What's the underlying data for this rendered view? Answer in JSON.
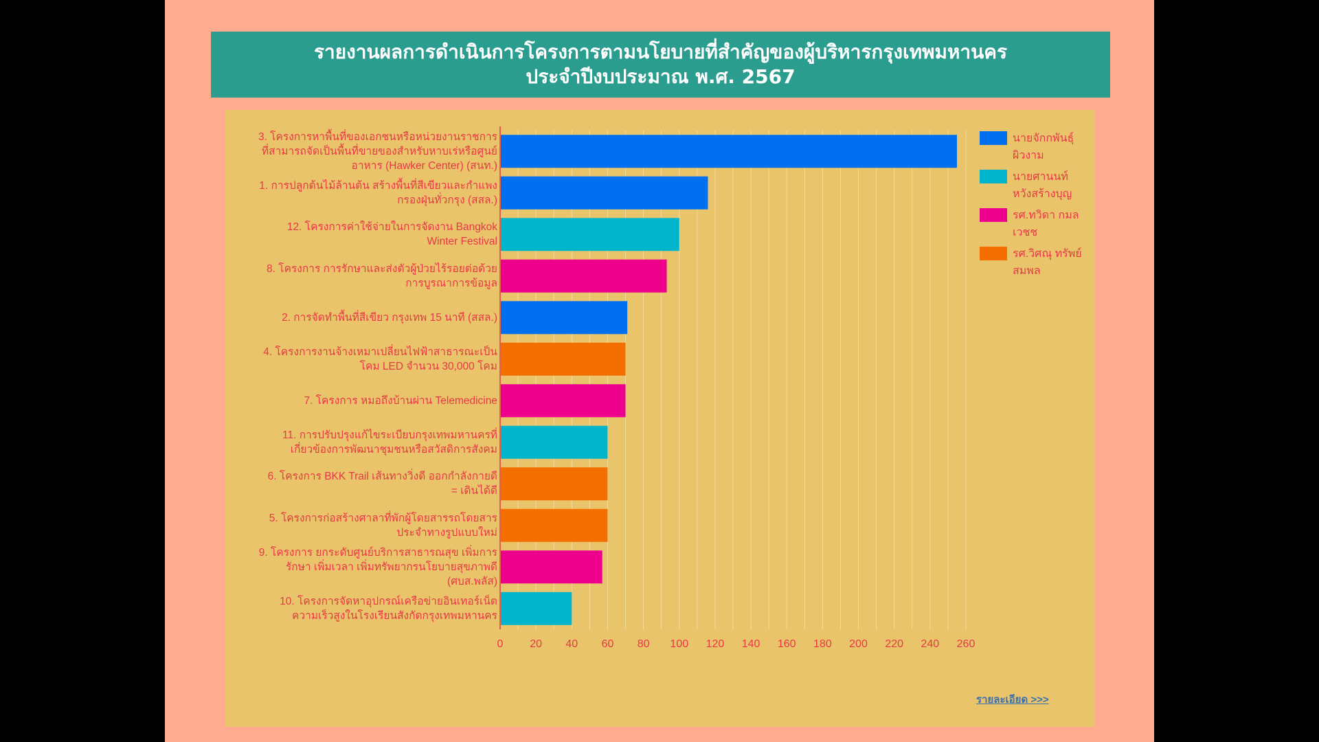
{
  "title": {
    "line1": "รายงานผลการดำเนินการโครงการตามนโยบายที่สำคัญของผู้บริหารกรุงเทพมหานคร",
    "line2": "ประจำปีงบประมาณ พ.ศ. 2567"
  },
  "detail_link": "รายละเอียด >>>",
  "colors": {
    "background": "#ffab8f",
    "title_bg": "#2a9d8f",
    "chart_bg": "#e9c46a",
    "text": "#e63946"
  },
  "legend": [
    {
      "label": "นายจักกพันธุ์ ผิวงาม",
      "color": "#0070f0"
    },
    {
      "label": "นายศานนท์ หวังสร้างบุญ",
      "color": "#00b4cc"
    },
    {
      "label": "รศ.ทวิดา กมลเวชช",
      "color": "#ec008c"
    },
    {
      "label": "รศ.วิศณุ ทรัพย์สมพล",
      "color": "#f46f00"
    }
  ],
  "chart_data": {
    "type": "bar",
    "orientation": "horizontal",
    "categories": [
      "3. โครงการหาพื้นที่ของเอกชนหรือหน่วยงานราชการที่สามารถจัดเป็นพื้นที่ขายของสำหรับหาบเร่หรือศูนย์อาหาร (Hawker Center) (สนท.)",
      "1. การปลูกต้นไม้ล้านต้น สร้างพื้นที่สีเขียวและกำแพงกรองฝุ่นทั่วกรุง (สสล.)",
      "12. โครงการค่าใช้จ่ายในการจัดงาน Bangkok Winter Festival",
      "8. โครงการ การรักษาและส่งตัวผู้ป่วยไร้รอยต่อด้วยการบูรณาการข้อมูล",
      "2. การจัดทำพื้นที่สีเขียว กรุงเทพ 15 นาที (สสล.)",
      "4. โครงการงานจ้างเหมาเปลี่ยนไฟฟ้าสาธารณะเป็นโคม LED จำนวน 30,000 โคม",
      "7. โครงการ หมอถึงบ้านผ่าน Telemedicine",
      "11. การปรับปรุงแก้ไขระเบียบกรุงเทพมหานครที่เกี่ยวข้องการพัฒนาชุมชนหรือสวัสดิการสังคม",
      "6. โครงการ BKK Trail เส้นทางวิ่งดี ออกกำลังกายดี = เดินได้ดี",
      "5. โครงการก่อสร้างศาลาที่พักผู้โดยสารรถโดยสารประจำทางรูปแบบใหม่",
      "9. โครงการ ยกระดับศูนย์บริการสาธารณสุข เพิ่มการรักษา เพิ่มเวลา เพิ่มทรัพยากรนโยบายสุขภาพดี (ศบส.พลัส)",
      "10. โครงการจัดหาอุปกรณ์เครือข่ายอินเทอร์เน็ตความเร็วสูงในโรงเรียนสังกัดกรุงเทพมหานคร"
    ],
    "category_lines": [
      [
        "3. โครงการหาพื้นที่ของเอกชนหรือหน่วยงานราชการ",
        "ที่สามารถจัดเป็นพื้นที่ขายของสำหรับหาบเร่หรือศูนย์",
        "อาหาร (Hawker Center) (สนท.)"
      ],
      [
        "1. การปลูกต้นไม้ล้านต้น สร้างพื้นที่สีเขียวและกำแพง",
        "กรองฝุ่นทั่วกรุง (สสล.)"
      ],
      [
        "12. โครงการค่าใช้จ่ายในการจัดงาน Bangkok",
        "Winter Festival"
      ],
      [
        "8. โครงการ การรักษาและส่งตัวผู้ป่วยไร้รอยต่อด้วย",
        "การบูรณาการข้อมูล"
      ],
      [
        "2. การจัดทำพื้นที่สีเขียว กรุงเทพ 15 นาที (สสล.)"
      ],
      [
        "4. โครงการงานจ้างเหมาเปลี่ยนไฟฟ้าสาธารณะเป็น",
        "โคม LED จำนวน 30,000 โคม"
      ],
      [
        "7. โครงการ หมอถึงบ้านผ่าน Telemedicine"
      ],
      [
        "11. การปรับปรุงแก้ไขระเบียบกรุงเทพมหานครที่",
        "เกี่ยวข้องการพัฒนาชุมชนหรือสวัสดิการสังคม"
      ],
      [
        "6. โครงการ BKK Trail เส้นทางวิ่งดี ออกกำลังกายดี",
        "= เดินได้ดี"
      ],
      [
        "5. โครงการก่อสร้างศาลาที่พักผู้โดยสารรถโดยสาร",
        "ประจำทางรูปแบบใหม่"
      ],
      [
        "9. โครงการ ยกระดับศูนย์บริการสาธารณสุข เพิ่มการ",
        "รักษา เพิ่มเวลา เพิ่มทรัพยากรนโยบายสุขภาพดี",
        "(ศบส.พลัส)"
      ],
      [
        "10. โครงการจัดหาอุปกรณ์เครือข่ายอินเทอร์เน็ต",
        "ความเร็วสูงในโรงเรียนสังกัดกรุงเทพมหานคร"
      ]
    ],
    "values": [
      255,
      116,
      100,
      93,
      71,
      70,
      70,
      60,
      60,
      60,
      57,
      40
    ],
    "bar_owner": [
      "นายจักกพันธุ์ ผิวงาม",
      "นายจักกพันธุ์ ผิวงาม",
      "นายศานนท์ หวังสร้างบุญ",
      "รศ.ทวิดา กมลเวชช",
      "นายจักกพันธุ์ ผิวงาม",
      "รศ.วิศณุ ทรัพย์สมพล",
      "รศ.ทวิดา กมลเวชช",
      "นายศานนท์ หวังสร้างบุญ",
      "รศ.วิศณุ ทรัพย์สมพล",
      "รศ.วิศณุ ทรัพย์สมพล",
      "รศ.ทวิดา กมลเวชช",
      "นายศานนท์ หวังสร้างบุญ"
    ],
    "xlim": [
      0,
      260
    ],
    "xticks": [
      0,
      20,
      40,
      60,
      80,
      100,
      120,
      140,
      160,
      180,
      200,
      220,
      240,
      260
    ],
    "grid": "vertical",
    "legend_position": "right"
  }
}
